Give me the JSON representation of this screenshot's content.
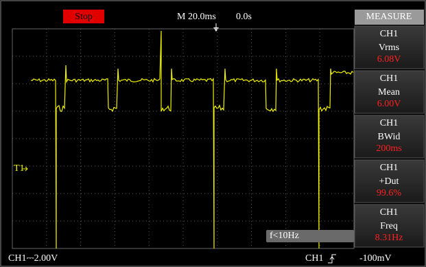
{
  "header": {
    "status": "Stop",
    "timebase": "M 20.0ms",
    "position": "0.0s"
  },
  "measure": {
    "title": "MEASURE",
    "items": [
      {
        "channel": "CH1",
        "name": "Vrms",
        "value": "6.08V"
      },
      {
        "channel": "CH1",
        "name": "Mean",
        "value": "6.00V"
      },
      {
        "channel": "CH1",
        "name": "BWid",
        "value": "200ms"
      },
      {
        "channel": "CH1",
        "name": "+Dut",
        "value": "99.6%"
      },
      {
        "channel": "CH1",
        "name": "Freq",
        "value": "8.31Hz"
      }
    ]
  },
  "trigger_marker": "T1",
  "frequency_note": "f<10Hz",
  "footer": {
    "channel_scale": "CH1⎓2.00V",
    "trigger_source": "CH1",
    "trigger_level": "-100mV"
  }
}
